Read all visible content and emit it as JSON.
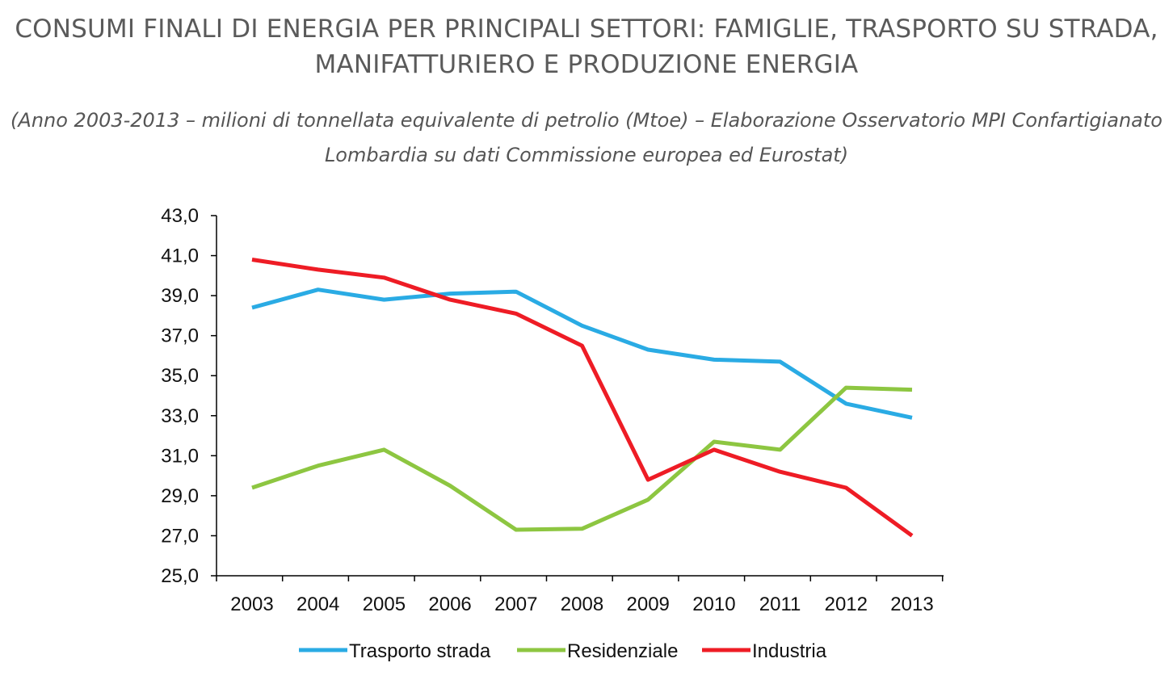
{
  "chart_data": {
    "type": "line",
    "title_line1": "CONSUMI FINALI DI ENERGIA PER PRINCIPALI SETTORI: FAMIGLIE, TRASPORTO SU STRADA,",
    "title_line2": "MANIFATTURIERO E PRODUZIONE ENERGIA",
    "subtitle_line1": "(Anno 2003-2013 – milioni di tonnellata equivalente di petrolio (Mtoe) – Elaborazione Osservatorio MPI Confartigianato",
    "subtitle_line2": "Lombardia su dati Commissione europea ed Eurostat)",
    "categories": [
      "2003",
      "2004",
      "2005",
      "2006",
      "2007",
      "2008",
      "2009",
      "2010",
      "2011",
      "2012",
      "2013"
    ],
    "yticks": [
      "25,0",
      "27,0",
      "29,0",
      "31,0",
      "33,0",
      "35,0",
      "37,0",
      "39,0",
      "41,0",
      "43,0"
    ],
    "ylim": [
      25,
      43
    ],
    "series": [
      {
        "name": "Trasporto strada",
        "color": "#2aabe4",
        "values": [
          38.4,
          39.3,
          38.8,
          39.1,
          39.2,
          37.5,
          36.3,
          35.8,
          35.7,
          33.6,
          32.9
        ]
      },
      {
        "name": "Residenziale",
        "color": "#8dc641",
        "values": [
          29.4,
          30.5,
          31.3,
          29.5,
          27.3,
          27.35,
          28.8,
          31.7,
          31.3,
          34.4,
          34.3
        ]
      },
      {
        "name": "Industria",
        "color": "#ee1c25",
        "values": [
          40.8,
          40.3,
          39.9,
          38.8,
          38.1,
          36.5,
          29.8,
          31.3,
          30.2,
          29.4,
          27.0
        ]
      }
    ]
  }
}
